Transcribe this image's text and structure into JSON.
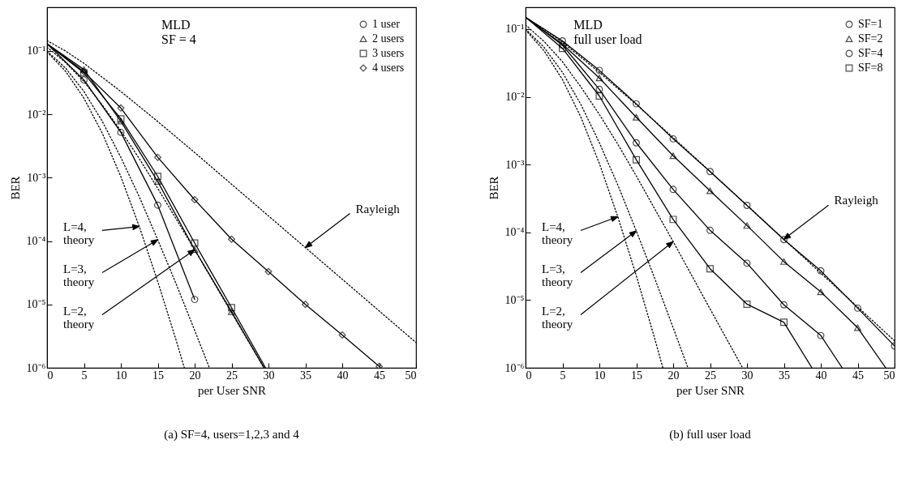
{
  "chart_data": [
    {
      "type": "line",
      "title": "(a) SF=4, users=1,2,3 and 4",
      "xlabel": "per User SNR",
      "ylabel": "BER",
      "log": "y",
      "legend": "top right",
      "xlim": [
        0,
        50
      ],
      "ylim": [
        1e-06,
        0.49
      ],
      "xticks": [
        0,
        5,
        10,
        15,
        20,
        25,
        30,
        35,
        40,
        45,
        50
      ],
      "yticks": [
        {
          "value": 1e-06,
          "label": "10⁻⁶"
        },
        {
          "value": 1e-05,
          "label": "10⁻⁵"
        },
        {
          "value": 0.0001,
          "label": "10⁻⁴"
        },
        {
          "value": 0.001,
          "label": "10⁻³"
        },
        {
          "value": 0.01,
          "label": "10⁻²"
        },
        {
          "value": 0.1,
          "label": "10⁻¹"
        }
      ],
      "annotations": [
        "MLD",
        "SF = 4",
        {
          "text": "Rayleigh",
          "x": 35,
          "y": 7.9e-05
        },
        {
          "text": "L=4,\ntheory",
          "x": 12.5,
          "y": 0.00017
        },
        {
          "text": "L=3,\ntheory",
          "x": 15,
          "y": 0.000105
        },
        {
          "text": "L=2,\ntheory",
          "x": 20,
          "y": 7.3e-05
        }
      ],
      "series": [
        {
          "type": "line",
          "color": "#000000",
          "line_style": "solid",
          "marker": "none",
          "x": [
            0,
            5,
            10,
            15,
            20
          ],
          "values": [
            0.13,
            0.035,
            0.0052,
            0.00037,
            1.2e-05
          ]
        },
        {
          "type": "line",
          "color": "#000000",
          "line_style": "solid",
          "marker": "none",
          "x": [
            0,
            5,
            10,
            15,
            20,
            25,
            29.4
          ],
          "values": [
            0.13,
            0.051,
            0.0078,
            0.00087,
            7.3e-05,
            7.7e-06,
            1e-06
          ]
        },
        {
          "type": "line",
          "color": "#000000",
          "line_style": "solid",
          "marker": "none",
          "x": [
            0,
            5,
            10,
            15,
            20,
            25,
            29.6
          ],
          "values": [
            0.13,
            0.045,
            0.0085,
            0.00105,
            9.3e-05,
            8.9e-06,
            1e-06
          ]
        },
        {
          "type": "line",
          "color": "#000000",
          "line_style": "solid",
          "marker": "none",
          "x": [
            0,
            5,
            10,
            15,
            20,
            25,
            30,
            35,
            40,
            45
          ],
          "values": [
            0.13,
            0.047,
            0.0126,
            0.0021,
            0.00045,
            0.000107,
            3.3e-05,
            1e-05,
            3.3e-06,
            1.05e-06
          ]
        },
        {
          "type": "line",
          "color": "#000000",
          "line_style": "dotted",
          "marker": "none",
          "x": [
            0,
            2.5,
            5,
            10,
            15,
            20,
            25,
            30,
            35,
            40,
            45,
            50
          ],
          "values": [
            0.146,
            0.1,
            0.064,
            0.023,
            0.0077,
            0.0025,
            0.00079,
            0.00025,
            7.9e-05,
            2.5e-05,
            7.9e-06,
            2.5e-06
          ]
        },
        {
          "type": "line",
          "color": "#000000",
          "line_style": "dotted",
          "marker": "none",
          "x": [
            0,
            2.5,
            5,
            7.5,
            10,
            12.5,
            15,
            17.5,
            18.6
          ],
          "values": [
            0.097,
            0.048,
            0.018,
            0.005,
            0.00104,
            0.00017,
            2.3e-05,
            2.7e-06,
            1e-06
          ]
        },
        {
          "type": "line",
          "color": "#000000",
          "line_style": "dotted",
          "marker": "none",
          "x": [
            0,
            2.5,
            5,
            7.5,
            10,
            12.5,
            15,
            17.5,
            20,
            22
          ],
          "values": [
            0.1,
            0.054,
            0.023,
            0.0077,
            0.0021,
            0.0005,
            0.000105,
            2.1e-05,
            3.9e-06,
            1e-06
          ]
        },
        {
          "type": "line",
          "color": "#000000",
          "line_style": "dotted",
          "marker": "none",
          "x": [
            0,
            2.5,
            5,
            7.5,
            10,
            12.5,
            15,
            20,
            25,
            29.4
          ],
          "values": [
            0.115,
            0.066,
            0.033,
            0.014,
            0.0055,
            0.002,
            0.00068,
            7.3e-05,
            7.4e-06,
            1e-06
          ]
        },
        {
          "type": "scatter",
          "name": "1 user",
          "color": "#000000",
          "marker": "circle",
          "x": [
            5,
            10,
            15,
            20
          ],
          "values": [
            0.035,
            0.0052,
            0.00037,
            1.2e-05
          ]
        },
        {
          "type": "scatter",
          "name": "2 users",
          "color": "#000000",
          "marker": "triangle",
          "x": [
            5,
            10,
            15,
            20,
            25
          ],
          "values": [
            0.051,
            0.0078,
            0.00087,
            7.3e-05,
            7.7e-06
          ]
        },
        {
          "type": "scatter",
          "name": "3 users",
          "color": "#000000",
          "marker": "square",
          "x": [
            5,
            10,
            15,
            20,
            25
          ],
          "values": [
            0.045,
            0.0085,
            0.00105,
            9.3e-05,
            8.9e-06
          ]
        },
        {
          "type": "scatter",
          "name": "4 users",
          "color": "#000000",
          "marker": "diamond",
          "x": [
            5,
            10,
            15,
            20,
            25,
            30,
            35,
            40,
            45
          ],
          "values": [
            0.047,
            0.0126,
            0.0021,
            0.00045,
            0.000107,
            3.3e-05,
            1e-05,
            3.3e-06,
            1.05e-06
          ]
        }
      ]
    },
    {
      "type": "line",
      "title": "(b) full user load",
      "xlabel": "per User SNR",
      "ylabel": "BER",
      "log": "y",
      "legend": "top right",
      "xlim": [
        0,
        50
      ],
      "ylim": [
        1e-06,
        0.21
      ],
      "xticks": [
        0,
        5,
        10,
        15,
        20,
        25,
        30,
        35,
        40,
        45,
        50
      ],
      "yticks": [
        {
          "value": 1e-06,
          "label": "10⁻⁶"
        },
        {
          "value": 1e-05,
          "label": "10⁻⁵"
        },
        {
          "value": 0.0001,
          "label": "10⁻⁴"
        },
        {
          "value": 0.001,
          "label": "10⁻³"
        },
        {
          "value": 0.01,
          "label": "10⁻²"
        },
        {
          "value": 0.1,
          "label": "10⁻¹"
        }
      ],
      "annotations": [
        "MLD",
        "full user load",
        {
          "text": "Rayleigh",
          "x": 35,
          "y": 7.9e-05
        },
        {
          "text": "L=4,\ntheory",
          "x": 12.5,
          "y": 0.00017
        },
        {
          "text": "L=3,\ntheory",
          "x": 15,
          "y": 0.000105
        },
        {
          "text": "L=2,\ntheory",
          "x": 20,
          "y": 7.3e-05
        }
      ],
      "series": [
        {
          "type": "line",
          "color": "#000000",
          "line_style": "solid",
          "marker": "none",
          "x": [
            0,
            5,
            10,
            15,
            20,
            25,
            30,
            35,
            40,
            45,
            50
          ],
          "values": [
            0.15,
            0.067,
            0.0246,
            0.0079,
            0.0024,
            0.00079,
            0.00025,
            7.8e-05,
            2.7e-05,
            7.6e-06,
            2.1e-06
          ]
        },
        {
          "type": "line",
          "color": "#000000",
          "line_style": "solid",
          "marker": "none",
          "x": [
            0,
            5,
            10,
            15,
            20,
            25,
            30,
            35,
            40,
            45,
            48.8
          ],
          "values": [
            0.15,
            0.06,
            0.019,
            0.005,
            0.00135,
            0.00041,
            0.000126,
            3.7e-05,
            1.32e-05,
            3.9e-06,
            1e-06
          ]
        },
        {
          "type": "line",
          "color": "#000000",
          "line_style": "solid",
          "marker": "none",
          "x": [
            0,
            5,
            10,
            15,
            20,
            25,
            30,
            35,
            40,
            42.9
          ],
          "values": [
            0.15,
            0.058,
            0.0129,
            0.0021,
            0.00043,
            0.000107,
            3.5e-05,
            8.5e-06,
            3e-06,
            1e-06
          ]
        },
        {
          "type": "line",
          "color": "#000000",
          "line_style": "solid",
          "marker": "none",
          "x": [
            0,
            5,
            10,
            15,
            20,
            25,
            30,
            35,
            38.8
          ],
          "values": [
            0.15,
            0.052,
            0.0103,
            0.00118,
            0.000155,
            2.9e-05,
            8.7e-06,
            4.7e-06,
            1e-06
          ]
        },
        {
          "type": "line",
          "color": "#000000",
          "line_style": "dotted",
          "marker": "none",
          "x": [
            0,
            2.5,
            5,
            10,
            15,
            20,
            25,
            30,
            35,
            40,
            45,
            50
          ],
          "values": [
            0.146,
            0.1,
            0.064,
            0.023,
            0.0077,
            0.0025,
            0.00079,
            0.00025,
            7.9e-05,
            2.5e-05,
            7.9e-06,
            2.5e-06
          ]
        },
        {
          "type": "line",
          "color": "#000000",
          "line_style": "dotted",
          "marker": "none",
          "x": [
            0,
            2.5,
            5,
            7.5,
            10,
            12.5,
            15,
            17.5,
            18.6
          ],
          "values": [
            0.097,
            0.048,
            0.018,
            0.005,
            0.00104,
            0.00017,
            2.3e-05,
            2.7e-06,
            1e-06
          ]
        },
        {
          "type": "line",
          "color": "#000000",
          "line_style": "dotted",
          "marker": "none",
          "x": [
            0,
            2.5,
            5,
            7.5,
            10,
            12.5,
            15,
            17.5,
            20,
            22
          ],
          "values": [
            0.1,
            0.054,
            0.023,
            0.0077,
            0.0021,
            0.0005,
            0.000105,
            2.1e-05,
            3.9e-06,
            1e-06
          ]
        },
        {
          "type": "line",
          "color": "#000000",
          "line_style": "dotted",
          "marker": "none",
          "x": [
            0,
            2.5,
            5,
            7.5,
            10,
            12.5,
            15,
            20,
            25,
            29.4
          ],
          "values": [
            0.115,
            0.066,
            0.033,
            0.014,
            0.0055,
            0.002,
            0.00068,
            7.3e-05,
            7.4e-06,
            1e-06
          ]
        },
        {
          "type": "scatter",
          "name": "SF=1",
          "color": "#000000",
          "marker": "circle",
          "x": [
            5,
            10,
            15,
            20,
            25,
            30,
            35,
            40,
            45,
            50
          ],
          "values": [
            0.067,
            0.0246,
            0.0079,
            0.0024,
            0.00079,
            0.00025,
            7.8e-05,
            2.7e-05,
            7.6e-06,
            2.1e-06
          ]
        },
        {
          "type": "scatter",
          "name": "SF=2",
          "color": "#000000",
          "marker": "triangle",
          "x": [
            10,
            15,
            20,
            25,
            30,
            35,
            40,
            45
          ],
          "values": [
            0.019,
            0.005,
            0.00135,
            0.00041,
            0.000126,
            3.7e-05,
            1.32e-05,
            3.9e-06
          ]
        },
        {
          "type": "scatter",
          "name": "SF=4",
          "color": "#000000",
          "marker": "circle",
          "x": [
            5,
            10,
            15,
            20,
            25,
            30,
            35,
            40
          ],
          "values": [
            0.058,
            0.0129,
            0.0021,
            0.00043,
            0.000107,
            3.5e-05,
            8.5e-06,
            3e-06
          ]
        },
        {
          "type": "scatter",
          "name": "SF=8",
          "color": "#000000",
          "marker": "square",
          "x": [
            5,
            10,
            15,
            20,
            25,
            30,
            35
          ],
          "values": [
            0.052,
            0.0103,
            0.00118,
            0.000155,
            2.9e-05,
            8.7e-06,
            4.7e-06
          ]
        }
      ]
    }
  ]
}
